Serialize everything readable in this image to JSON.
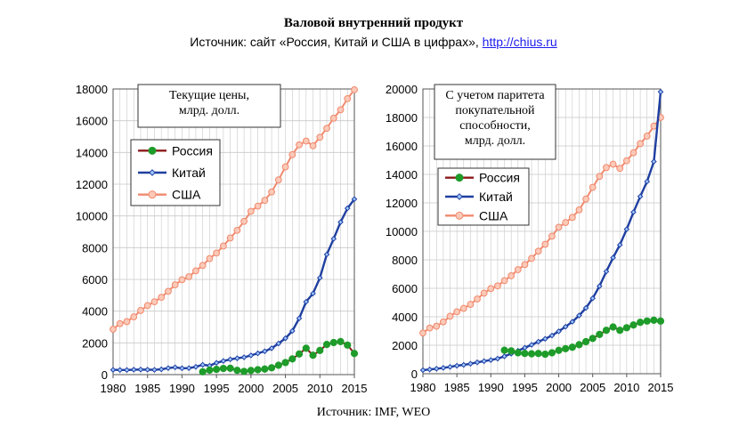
{
  "header": {
    "title": "Валовой внутренний продукт",
    "source_prefix": "Источник: сайт «Россия, Китай и США в цифрах»,",
    "source_link": "http://chius.ru"
  },
  "footer": {
    "source": "Источник: IMF, WEO"
  },
  "colors": {
    "russia": "#1e9c2a",
    "russia_line": "#8b1a1a",
    "china": "#1f3fa0",
    "usa": "#f08a6e",
    "usa_fill": "#fbc9b8"
  },
  "chart_data": [
    {
      "type": "line",
      "title": "Текущие цены,\nмлрд. долл.",
      "xlabel": "",
      "ylabel": "",
      "xlim": [
        1980,
        2015
      ],
      "ylim": [
        0,
        18000
      ],
      "xticks": [
        1980,
        1985,
        1990,
        1995,
        2000,
        2005,
        2010,
        2015
      ],
      "yticks": [
        0,
        2000,
        4000,
        6000,
        8000,
        10000,
        12000,
        14000,
        16000,
        18000
      ],
      "grid": true,
      "legend_position": "upper-left",
      "series": [
        {
          "name": "Россия",
          "x": [
            1993,
            1994,
            1995,
            1996,
            1997,
            1998,
            1999,
            2000,
            2001,
            2002,
            2003,
            2004,
            2005,
            2006,
            2007,
            2008,
            2009,
            2010,
            2011,
            2012,
            2013,
            2014,
            2015
          ],
          "values": [
            180,
            280,
            330,
            390,
            400,
            270,
            200,
            260,
            310,
            350,
            430,
            590,
            760,
            990,
            1300,
            1660,
            1220,
            1520,
            1900,
            2020,
            2080,
            1860,
            1330
          ]
        },
        {
          "name": "Китай",
          "x": [
            1980,
            1981,
            1982,
            1983,
            1984,
            1985,
            1986,
            1987,
            1988,
            1989,
            1990,
            1991,
            1992,
            1993,
            1994,
            1995,
            1996,
            1997,
            1998,
            1999,
            2000,
            2001,
            2002,
            2003,
            2004,
            2005,
            2006,
            2007,
            2008,
            2009,
            2010,
            2011,
            2012,
            2013,
            2014,
            2015
          ],
          "values": [
            300,
            290,
            290,
            310,
            320,
            310,
            300,
            330,
            410,
            460,
            400,
            410,
            490,
            620,
            560,
            740,
            860,
            960,
            1030,
            1090,
            1210,
            1340,
            1470,
            1660,
            1960,
            2290,
            2750,
            3550,
            4590,
            5110,
            6100,
            7570,
            8560,
            9610,
            10480,
            11060
          ]
        },
        {
          "name": "США",
          "x": [
            1980,
            1981,
            1982,
            1983,
            1984,
            1985,
            1986,
            1987,
            1988,
            1989,
            1990,
            1991,
            1992,
            1993,
            1994,
            1995,
            1996,
            1997,
            1998,
            1999,
            2000,
            2001,
            2002,
            2003,
            2004,
            2005,
            2006,
            2007,
            2008,
            2009,
            2010,
            2011,
            2012,
            2013,
            2014,
            2015
          ],
          "values": [
            2860,
            3210,
            3340,
            3640,
            4040,
            4350,
            4590,
            4870,
            5250,
            5660,
            5980,
            6170,
            6540,
            6880,
            7310,
            7660,
            8100,
            8610,
            9090,
            9660,
            10290,
            10620,
            10980,
            11510,
            12270,
            13090,
            13860,
            14480,
            14720,
            14420,
            14960,
            15520,
            16160,
            16690,
            17390,
            17950
          ]
        }
      ]
    },
    {
      "type": "line",
      "title": "С учетом паритета\nпокупательной\nспособности,\nмлрд. долл.",
      "xlabel": "",
      "ylabel": "",
      "xlim": [
        1980,
        2015
      ],
      "ylim": [
        0,
        20000
      ],
      "xticks": [
        1980,
        1985,
        1990,
        1995,
        2000,
        2005,
        2010,
        2015
      ],
      "yticks": [
        0,
        2000,
        4000,
        6000,
        8000,
        10000,
        12000,
        14000,
        16000,
        18000,
        20000
      ],
      "grid": true,
      "legend_position": "upper-left",
      "series": [
        {
          "name": "Россия",
          "x": [
            1992,
            1993,
            1994,
            1995,
            1996,
            1997,
            1998,
            1999,
            2000,
            2001,
            2002,
            2003,
            2004,
            2005,
            2006,
            2007,
            2008,
            2009,
            2010,
            2011,
            2012,
            2013,
            2014,
            2015
          ],
          "values": [
            1650,
            1600,
            1470,
            1420,
            1400,
            1420,
            1370,
            1470,
            1640,
            1760,
            1860,
            2040,
            2250,
            2480,
            2760,
            3050,
            3280,
            3050,
            3230,
            3420,
            3610,
            3700,
            3760,
            3700
          ]
        },
        {
          "name": "Китай",
          "x": [
            1980,
            1981,
            1982,
            1983,
            1984,
            1985,
            1986,
            1987,
            1988,
            1989,
            1990,
            1991,
            1992,
            1993,
            1994,
            1995,
            1996,
            1997,
            1998,
            1999,
            2000,
            2001,
            2002,
            2003,
            2004,
            2005,
            2006,
            2007,
            2008,
            2009,
            2010,
            2011,
            2012,
            2013,
            2014,
            2015
          ],
          "values": [
            250,
            300,
            350,
            410,
            480,
            560,
            620,
            700,
            800,
            880,
            960,
            1060,
            1220,
            1410,
            1610,
            1820,
            2030,
            2250,
            2450,
            2680,
            2980,
            3300,
            3650,
            4090,
            4620,
            5300,
            6150,
            7180,
            8150,
            9050,
            10150,
            11350,
            12450,
            13500,
            14900,
            19800
          ]
        },
        {
          "name": "США",
          "x": [
            1980,
            1981,
            1982,
            1983,
            1984,
            1985,
            1986,
            1987,
            1988,
            1989,
            1990,
            1991,
            1992,
            1993,
            1994,
            1995,
            1996,
            1997,
            1998,
            1999,
            2000,
            2001,
            2002,
            2003,
            2004,
            2005,
            2006,
            2007,
            2008,
            2009,
            2010,
            2011,
            2012,
            2013,
            2014,
            2015
          ],
          "values": [
            2860,
            3210,
            3340,
            3640,
            4040,
            4350,
            4590,
            4870,
            5250,
            5660,
            5980,
            6170,
            6540,
            6880,
            7310,
            7660,
            8100,
            8610,
            9090,
            9660,
            10290,
            10620,
            10980,
            11510,
            12270,
            13090,
            13860,
            14480,
            14720,
            14420,
            14960,
            15520,
            16160,
            16690,
            17390,
            18000
          ]
        }
      ]
    }
  ]
}
